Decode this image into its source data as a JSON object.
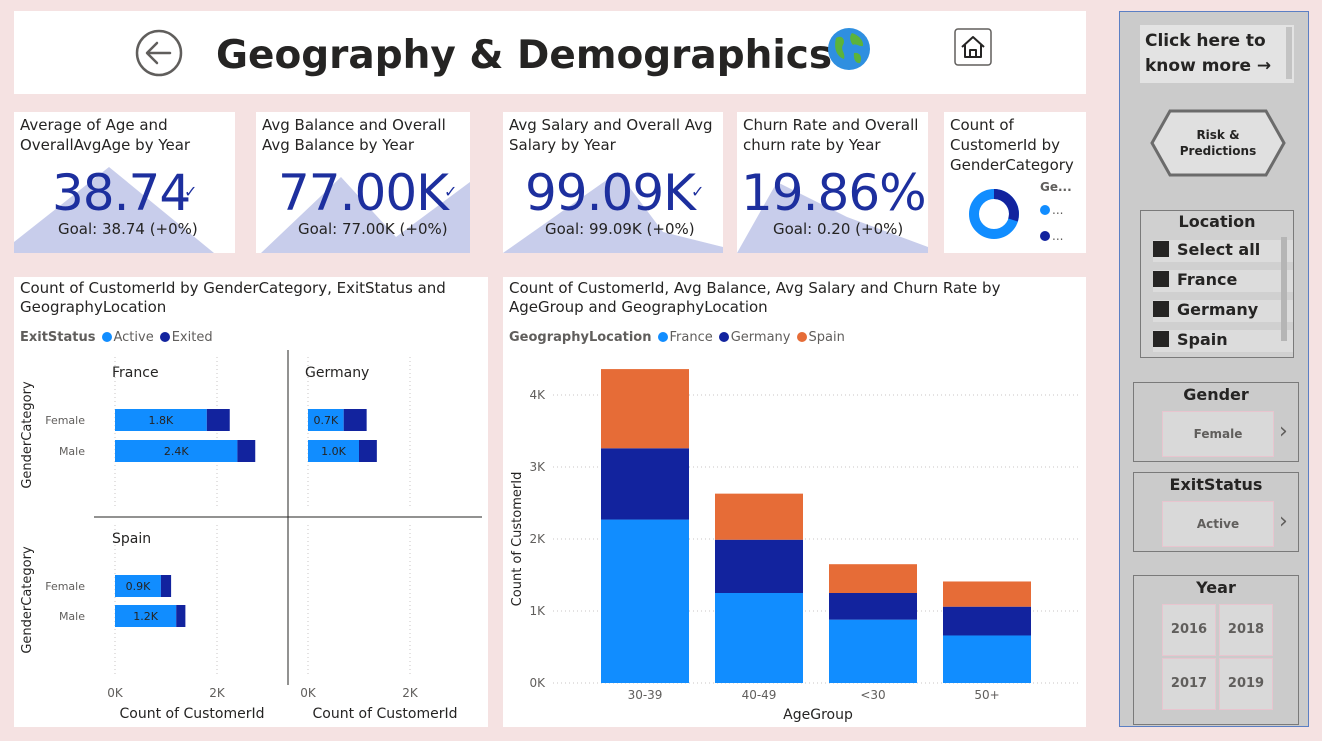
{
  "header": {
    "title": "Geography & Demographics",
    "globe_icon": "globe-icon",
    "back_icon": "back-arrow-icon",
    "home_icon": "home-icon"
  },
  "kpis": [
    {
      "title": "Average of Age and OverallAvgAge by Year",
      "value": "38.74",
      "goal": "Goal: 38.74 (+0%)"
    },
    {
      "title": "Avg Balance and Overall Avg Balance by Year",
      "value": "77.00K",
      "goal": "Goal: 77.00K (+0%)"
    },
    {
      "title": "Avg Salary and Overall Avg Salary by Year",
      "value": "99.09K",
      "goal": "Goal: 99.09K (+0%)"
    },
    {
      "title": "Churn Rate and Overall churn rate by Year",
      "value": "19.86%",
      "goal": "Goal: 0.20 (+0%)"
    }
  ],
  "donut": {
    "title": "Count of CustomerId by GenderCategory",
    "legend_title": "Ge...",
    "legend_items": [
      "...",
      "..."
    ],
    "colors": [
      "#118dff",
      "#12239e"
    ]
  },
  "gender_chart": {
    "title": "Count of CustomerId by GenderCategory, ExitStatus and GeographyLocation",
    "legend_title": "ExitStatus",
    "legend_items": [
      {
        "name": "Active",
        "color": "#118dff"
      },
      {
        "name": "Exited",
        "color": "#12239e"
      }
    ],
    "ylabel": "GenderCategory",
    "xlabel": "Count of CustomerId",
    "xticks": [
      "0K",
      "2K"
    ],
    "facets": [
      {
        "name": "France",
        "rows": [
          {
            "category": "Female",
            "active": 1.8,
            "exited": 0.45,
            "label": "1.8K"
          },
          {
            "category": "Male",
            "active": 2.4,
            "exited": 0.35,
            "label": "2.4K"
          }
        ]
      },
      {
        "name": "Germany",
        "rows": [
          {
            "category": "Female",
            "active": 0.7,
            "exited": 0.45,
            "label": "0.7K"
          },
          {
            "category": "Male",
            "active": 1.0,
            "exited": 0.35,
            "label": "1.0K"
          }
        ]
      },
      {
        "name": "Spain",
        "rows": [
          {
            "category": "Female",
            "active": 0.9,
            "exited": 0.2,
            "label": "0.9K"
          },
          {
            "category": "Male",
            "active": 1.2,
            "exited": 0.18,
            "label": "1.2K"
          }
        ]
      }
    ]
  },
  "chart_data": {
    "type": "bar",
    "stacked": true,
    "title": "Count of CustomerId, Avg Balance, Avg Salary and Churn Rate by AgeGroup and GeographyLocation",
    "legend_title": "GeographyLocation",
    "legend_placement": "top-left",
    "xlabel": "AgeGroup",
    "ylabel": "Count of CustomerId",
    "categories": [
      "30-39",
      "40-49",
      "<30",
      "50+"
    ],
    "ylim": [
      0,
      4500
    ],
    "yticks": [
      0,
      1000,
      2000,
      3000,
      4000
    ],
    "ytick_labels": [
      "0K",
      "1K",
      "2K",
      "3K",
      "4K"
    ],
    "grid": true,
    "series": [
      {
        "name": "France",
        "color": "#118dff",
        "values": [
          2270,
          1250,
          880,
          660
        ]
      },
      {
        "name": "Germany",
        "color": "#12239e",
        "values": [
          990,
          740,
          370,
          400
        ]
      },
      {
        "name": "Spain",
        "color": "#e66c37",
        "values": [
          1100,
          640,
          400,
          350
        ]
      }
    ]
  },
  "sidebar": {
    "know_more": "Click here to know more →",
    "risk_button": "Risk & Predictions",
    "location": {
      "title": "Location",
      "items": [
        "Select all",
        "France",
        "Germany",
        "Spain"
      ]
    },
    "gender": {
      "title": "Gender",
      "value": "Female"
    },
    "exit_status": {
      "title": "ExitStatus",
      "value": "Active"
    },
    "year": {
      "title": "Year",
      "items": [
        "2016",
        "2018",
        "2017",
        "2019"
      ]
    }
  }
}
